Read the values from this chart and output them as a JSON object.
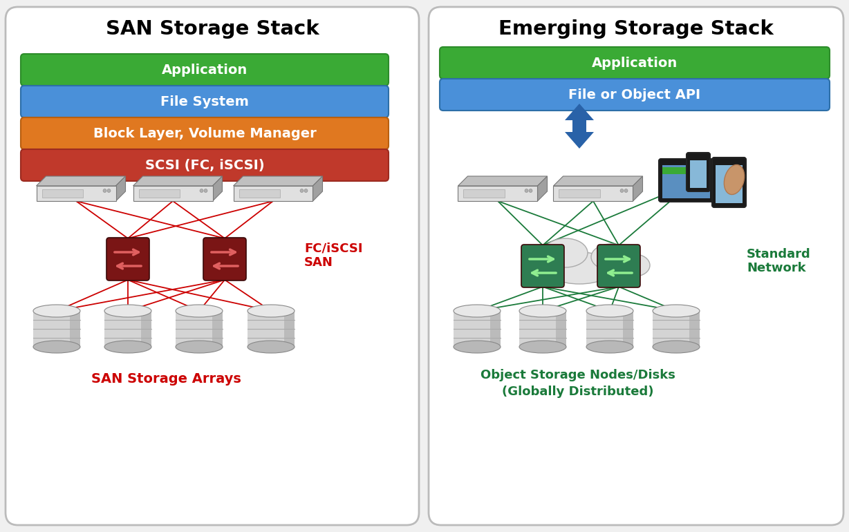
{
  "bg_color": "#f0f0f0",
  "panel_bg": "#ffffff",
  "title_left": "SAN Storage Stack",
  "title_right": "Emerging Storage Stack",
  "left_bars": [
    {
      "label": "Application",
      "color": "#3aaa35",
      "border": "#2d8c2a"
    },
    {
      "label": "File System",
      "color": "#4a90d9",
      "border": "#2d6fa8"
    },
    {
      "label": "Block Layer, Volume Manager",
      "color": "#e07820",
      "border": "#b85f10"
    },
    {
      "label": "SCSI (FC, iSCSI)",
      "color": "#c0392b",
      "border": "#9c2b20"
    }
  ],
  "right_bars": [
    {
      "label": "Application",
      "color": "#3aaa35",
      "border": "#2d8c2a"
    },
    {
      "label": "File or Object API",
      "color": "#4a90d9",
      "border": "#2d6fa8"
    }
  ],
  "san_label": "FC/iSCSI\nSAN",
  "san_color": "#cc0000",
  "san_box_color": "#7a1515",
  "network_label": "Standard\nNetwork",
  "network_color": "#1a7a3a",
  "network_box_color": "#2e7d52",
  "storage_arrays_label": "SAN Storage Arrays",
  "storage_arrays_color": "#cc0000",
  "object_storage_label": "Object Storage Nodes/Disks\n(Globally Distributed)",
  "object_storage_color": "#1a7a3a",
  "line_color_left": "#cc0000",
  "line_color_right": "#1a7a3a",
  "arrow_color": "#2962a8"
}
